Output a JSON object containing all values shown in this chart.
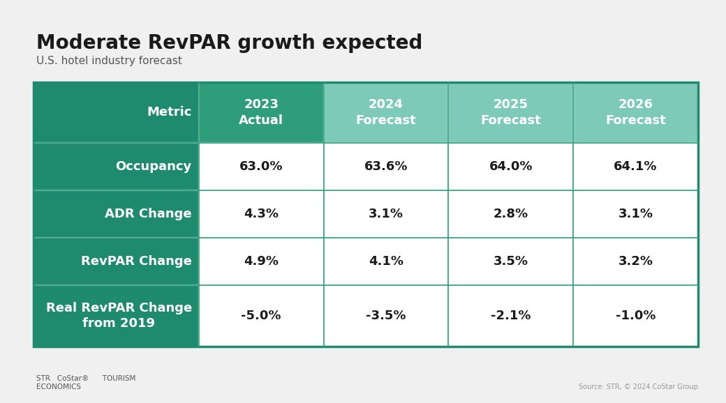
{
  "title": "Moderate RevPAR growth expected",
  "subtitle": "U.S. hotel industry forecast",
  "col_headers": [
    "Metric",
    "2023\nActual",
    "2024\nForecast",
    "2025\nForecast",
    "2026\nForecast"
  ],
  "rows": [
    [
      "Occupancy",
      "63.0%",
      "63.6%",
      "64.0%",
      "64.1%"
    ],
    [
      "ADR Change",
      "4.3%",
      "3.1%",
      "2.8%",
      "3.1%"
    ],
    [
      "RevPAR Change",
      "4.9%",
      "4.1%",
      "3.5%",
      "3.2%"
    ],
    [
      "Real RevPAR Change\nfrom 2019",
      "-5.0%",
      "-3.5%",
      "-2.1%",
      "-1.0%"
    ]
  ],
  "header_col0_bg": "#1e8a6e",
  "header_col1_bg": "#2e9d7a",
  "header_col234_bg": "#7ecab8",
  "row_label_bg": "#1e8a6e",
  "data_bg": "#ffffff",
  "header_text_color": "#ffffff",
  "row_label_text_color": "#ffffff",
  "data_text_color": "#1a1a1a",
  "grid_color": "#2a9d78",
  "outer_border_color": "#1e8a6e",
  "bg_color": "#f0f0f0",
  "source_text": "Source: STR, © 2024 CoStar Group",
  "footer_text": "STR   CoStar®      TOURISM\nECONOMICS",
  "title_fontsize": 20,
  "subtitle_fontsize": 11,
  "header_fontsize": 13,
  "cell_fontsize": 13
}
